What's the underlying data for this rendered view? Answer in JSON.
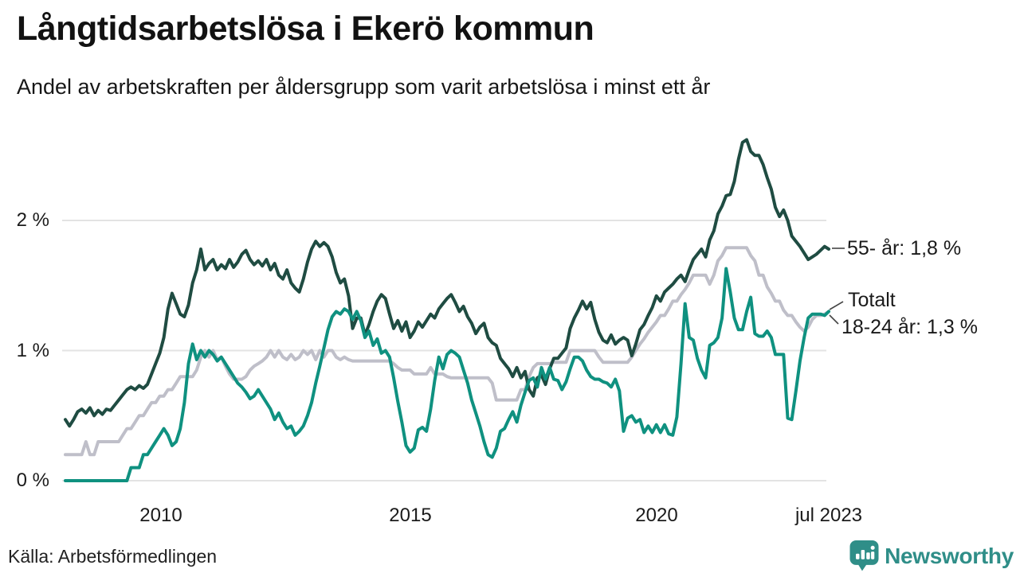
{
  "header": {
    "title": "Långtidsarbetslösa i Ekerö kommun",
    "subtitle": "Andel av arbetskraften per åldersgrupp som varit arbetslösa i minst ett år"
  },
  "footer": {
    "source": "Källa: Arbetsförmedlingen",
    "brand_name": "Newsworthy",
    "brand_icon": "bar-chart-pin-icon"
  },
  "colors": {
    "series_55": "#1f4c42",
    "series_total": "#bfbfc9",
    "series_18_24": "#0f9180",
    "gridline": "#e3e3e3",
    "connector": "#444444",
    "brand_teal": "#2f8e88",
    "text": "#1a1a1a"
  },
  "chart_data": {
    "type": "line",
    "title": "Långtidsarbetslösa i Ekerö kommun",
    "subtitle": "Andel av arbetskraften per åldersgrupp som varit arbetslösa i minst ett år",
    "unit": "% av arbetskraften",
    "frequency": "monthly",
    "x_start": "2008-01",
    "x_end": "2023-07",
    "grid": "horizontal-only",
    "legend_position": "right-end-labels",
    "y_axis": {
      "range": [
        0,
        2.75
      ],
      "ticks": [
        {
          "value": 2,
          "label": "2 %"
        },
        {
          "value": 1,
          "label": "1 %"
        },
        {
          "value": 0,
          "label": "0 %"
        }
      ]
    },
    "x_axis": {
      "ticks": [
        {
          "month_index": 24,
          "label": "2010"
        },
        {
          "month_index": 84,
          "label": "2015"
        },
        {
          "month_index": 144,
          "label": "2020"
        },
        {
          "month_index": 186,
          "label": "jul 2023"
        }
      ]
    },
    "series": [
      {
        "name": "55- år",
        "end_label": "55- år: 1,8 %",
        "end_value_label": "1,8 %",
        "color": "#1f4c42",
        "values": [
          0.47,
          0.42,
          0.47,
          0.53,
          0.55,
          0.52,
          0.56,
          0.5,
          0.54,
          0.51,
          0.55,
          0.54,
          0.58,
          0.62,
          0.66,
          0.7,
          0.72,
          0.7,
          0.73,
          0.71,
          0.74,
          0.82,
          0.9,
          0.98,
          1.1,
          1.32,
          1.44,
          1.36,
          1.28,
          1.26,
          1.35,
          1.52,
          1.62,
          1.78,
          1.62,
          1.67,
          1.7,
          1.62,
          1.66,
          1.63,
          1.7,
          1.64,
          1.68,
          1.74,
          1.77,
          1.7,
          1.66,
          1.69,
          1.65,
          1.7,
          1.62,
          1.67,
          1.58,
          1.55,
          1.62,
          1.52,
          1.48,
          1.45,
          1.55,
          1.68,
          1.78,
          1.84,
          1.8,
          1.83,
          1.8,
          1.72,
          1.6,
          1.52,
          1.55,
          1.42,
          1.17,
          1.25,
          1.25,
          1.12,
          1.2,
          1.3,
          1.38,
          1.43,
          1.4,
          1.28,
          1.17,
          1.23,
          1.15,
          1.22,
          1.1,
          1.15,
          1.22,
          1.18,
          1.23,
          1.28,
          1.25,
          1.32,
          1.36,
          1.4,
          1.43,
          1.37,
          1.3,
          1.34,
          1.26,
          1.21,
          1.13,
          1.18,
          1.21,
          1.1,
          1.06,
          1.04,
          0.94,
          0.9,
          0.86,
          0.8,
          0.87,
          0.79,
          0.84,
          0.7,
          0.65,
          0.79,
          0.81,
          0.74,
          0.86,
          0.94,
          0.94,
          0.98,
          1.02,
          1.17,
          1.25,
          1.31,
          1.38,
          1.32,
          1.37,
          1.24,
          1.14,
          1.08,
          1.06,
          1.12,
          1.05,
          1.08,
          1.1,
          1.08,
          0.96,
          1.05,
          1.16,
          1.2,
          1.27,
          1.33,
          1.42,
          1.38,
          1.45,
          1.48,
          1.51,
          1.55,
          1.58,
          1.53,
          1.62,
          1.7,
          1.74,
          1.78,
          1.72,
          1.85,
          1.92,
          2.05,
          2.11,
          2.19,
          2.2,
          2.3,
          2.47,
          2.6,
          2.62,
          2.53,
          2.5,
          2.5,
          2.43,
          2.33,
          2.24,
          2.1,
          2.03,
          2.08,
          2.0,
          1.88,
          1.84,
          1.8,
          1.75,
          1.7,
          1.72,
          1.74,
          1.77,
          1.8,
          1.78
        ]
      },
      {
        "name": "Totalt",
        "end_label": "Totalt",
        "end_value_label": "1,3 %",
        "color": "#bfbfc9",
        "values": [
          0.2,
          0.2,
          0.2,
          0.2,
          0.2,
          0.3,
          0.2,
          0.2,
          0.3,
          0.3,
          0.3,
          0.3,
          0.3,
          0.3,
          0.35,
          0.4,
          0.4,
          0.45,
          0.5,
          0.5,
          0.55,
          0.6,
          0.6,
          0.65,
          0.65,
          0.7,
          0.7,
          0.75,
          0.8,
          0.8,
          0.8,
          0.8,
          0.85,
          0.95,
          1.0,
          0.95,
          1.0,
          0.93,
          0.95,
          0.88,
          0.82,
          0.78,
          0.78,
          0.78,
          0.8,
          0.85,
          0.88,
          0.9,
          0.92,
          0.95,
          1.0,
          0.95,
          1.0,
          0.95,
          0.93,
          0.97,
          0.93,
          0.95,
          1.0,
          0.97,
          1.0,
          0.93,
          1.0,
          0.95,
          1.0,
          1.0,
          0.95,
          0.93,
          0.95,
          0.93,
          0.92,
          0.92,
          0.92,
          0.92,
          0.92,
          0.92,
          0.92,
          0.92,
          0.92,
          0.92,
          0.9,
          0.87,
          0.85,
          0.85,
          0.85,
          0.82,
          0.82,
          0.82,
          0.82,
          0.87,
          0.82,
          0.82,
          0.82,
          0.8,
          0.79,
          0.79,
          0.79,
          0.79,
          0.79,
          0.79,
          0.79,
          0.79,
          0.79,
          0.79,
          0.75,
          0.62,
          0.62,
          0.62,
          0.62,
          0.62,
          0.62,
          0.7,
          0.7,
          0.8,
          0.87,
          0.9,
          0.9,
          0.9,
          0.9,
          0.91,
          0.91,
          0.91,
          0.91,
          1.0,
          1.0,
          1.0,
          1.0,
          1.0,
          1.0,
          1.0,
          0.95,
          0.91,
          0.91,
          0.91,
          0.91,
          0.91,
          0.91,
          0.91,
          0.95,
          1.0,
          1.05,
          1.09,
          1.14,
          1.18,
          1.22,
          1.27,
          1.27,
          1.32,
          1.38,
          1.38,
          1.43,
          1.47,
          1.52,
          1.58,
          1.58,
          1.58,
          1.58,
          1.51,
          1.58,
          1.69,
          1.73,
          1.79,
          1.79,
          1.79,
          1.79,
          1.79,
          1.79,
          1.73,
          1.69,
          1.58,
          1.58,
          1.49,
          1.44,
          1.38,
          1.38,
          1.31,
          1.27,
          1.27,
          1.22,
          1.18,
          1.15,
          1.18,
          1.24,
          1.27,
          1.27,
          1.28,
          1.3
        ]
      },
      {
        "name": "18-24 år",
        "end_label": "18-24 år: 1,3 %",
        "end_value_label": "1,3 %",
        "color": "#0f9180",
        "values": [
          0.0,
          0.0,
          0.0,
          0.0,
          0.0,
          0.0,
          0.0,
          0.0,
          0.0,
          0.0,
          0.0,
          0.0,
          0.0,
          0.0,
          0.0,
          0.0,
          0.1,
          0.1,
          0.1,
          0.2,
          0.2,
          0.25,
          0.3,
          0.35,
          0.4,
          0.35,
          0.27,
          0.3,
          0.4,
          0.6,
          0.9,
          1.05,
          0.93,
          1.0,
          0.95,
          1.0,
          0.97,
          0.92,
          0.95,
          0.9,
          0.85,
          0.8,
          0.75,
          0.72,
          0.68,
          0.63,
          0.65,
          0.7,
          0.65,
          0.6,
          0.55,
          0.47,
          0.52,
          0.45,
          0.4,
          0.42,
          0.35,
          0.38,
          0.42,
          0.5,
          0.6,
          0.75,
          0.88,
          1.02,
          1.16,
          1.26,
          1.3,
          1.28,
          1.32,
          1.3,
          1.24,
          1.3,
          1.23,
          1.1,
          1.15,
          1.04,
          1.09,
          0.98,
          1.0,
          0.95,
          0.79,
          0.61,
          0.45,
          0.27,
          0.22,
          0.25,
          0.39,
          0.41,
          0.38,
          0.55,
          0.77,
          0.95,
          0.86,
          0.97,
          1.0,
          0.98,
          0.95,
          0.85,
          0.75,
          0.62,
          0.52,
          0.42,
          0.3,
          0.2,
          0.18,
          0.25,
          0.38,
          0.4,
          0.47,
          0.53,
          0.45,
          0.58,
          0.68,
          0.77,
          0.79,
          0.72,
          0.87,
          0.78,
          0.87,
          0.78,
          0.77,
          0.7,
          0.76,
          0.86,
          0.95,
          0.95,
          0.92,
          0.85,
          0.8,
          0.78,
          0.78,
          0.76,
          0.75,
          0.72,
          0.78,
          0.69,
          0.38,
          0.48,
          0.5,
          0.45,
          0.47,
          0.37,
          0.42,
          0.37,
          0.43,
          0.37,
          0.43,
          0.36,
          0.35,
          0.49,
          0.9,
          1.36,
          1.1,
          1.08,
          0.94,
          0.85,
          0.79,
          1.04,
          1.06,
          1.1,
          1.25,
          1.63,
          1.45,
          1.25,
          1.16,
          1.16,
          1.3,
          1.41,
          1.13,
          1.11,
          1.11,
          1.15,
          1.1,
          0.97,
          0.97,
          0.97,
          0.48,
          0.47,
          0.69,
          0.92,
          1.1,
          1.25,
          1.28,
          1.28,
          1.28,
          1.27,
          1.3
        ]
      }
    ]
  }
}
